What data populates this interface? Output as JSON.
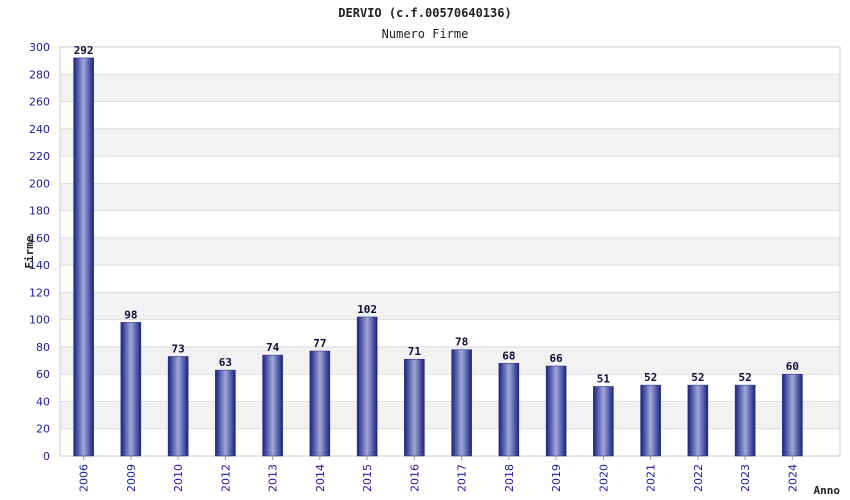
{
  "chart_data": {
    "type": "bar",
    "title": "DERVIO (c.f.00570640136)",
    "subtitle": "Numero Firme",
    "xlabel": "Anno",
    "ylabel": "Firme",
    "ylim": [
      0,
      300
    ],
    "yticks": [
      "0",
      "20",
      "40",
      "60",
      "80",
      "100",
      "120",
      "140",
      "160",
      "180",
      "200",
      "220",
      "240",
      "260",
      "280",
      "300"
    ],
    "grid": true,
    "categories": [
      "2006",
      "2009",
      "2010",
      "2012",
      "2013",
      "2014",
      "2015",
      "2016",
      "2017",
      "2018",
      "2019",
      "2020",
      "2021",
      "2022",
      "2023",
      "2024"
    ],
    "values": [
      292,
      98,
      73,
      63,
      74,
      77,
      102,
      71,
      78,
      68,
      66,
      51,
      52,
      52,
      52,
      60
    ],
    "value_labels": [
      "292",
      "98",
      "73",
      "63",
      "74",
      "77",
      "102",
      "71",
      "78",
      "68",
      "66",
      "51",
      "52",
      "52",
      "52",
      "60"
    ],
    "colors": {
      "bar_dark": "#1a237e",
      "bar_light": "#9fa8da",
      "band_alt": "#f2f2f2",
      "gridline": "#dddddd",
      "tick_text": "#1a1aa6",
      "value_text": "#0d0d40"
    }
  }
}
